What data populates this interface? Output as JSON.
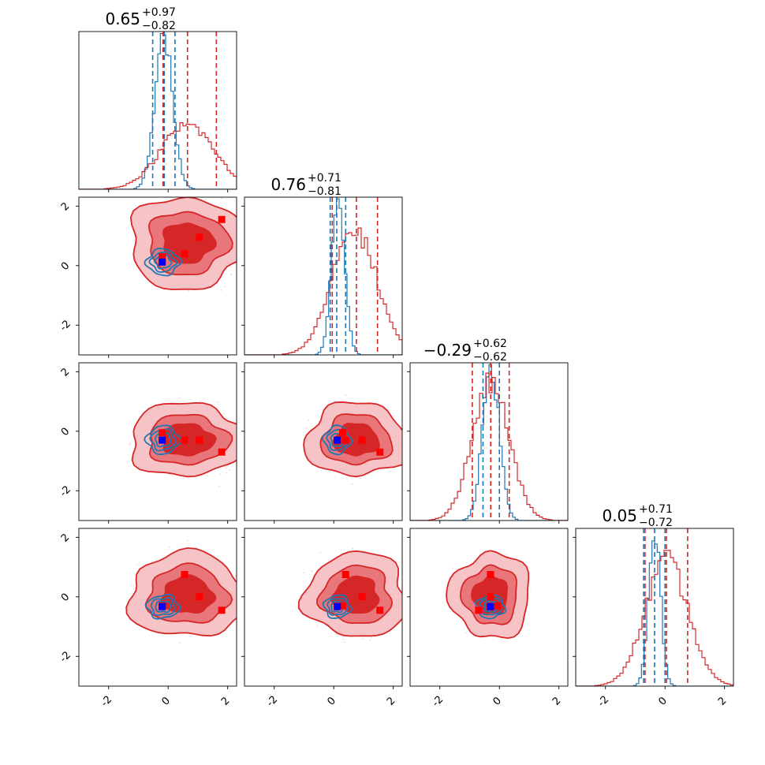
{
  "chart_data": {
    "type": "corner",
    "parameters": 4,
    "axis_range": [
      -3.0,
      2.3
    ],
    "ticks": [
      -2,
      0,
      2
    ],
    "tick_labels": [
      "-2",
      "0",
      "2"
    ],
    "colors": {
      "red": "#d62728",
      "red_mid": "#e8767a",
      "red_light": "#f6c4c6",
      "blue": "#1f77b4",
      "marker_red": "#ff0000",
      "marker_blue": "#0000ff"
    },
    "marginals": [
      {
        "title": {
          "value": "0.65",
          "plus": "+0.97",
          "minus": "−0.82"
        },
        "red_quantiles": [
          -0.17,
          0.65,
          1.62
        ],
        "blue_quantiles": [
          -0.52,
          -0.13,
          0.23
        ],
        "red_hist": {
          "mean": 0.65,
          "sd": 0.9,
          "peak": 0.42
        },
        "blue_hist": {
          "mean": -0.15,
          "sd": 0.3,
          "peak": 1.0
        }
      },
      {
        "title": {
          "value": "0.76",
          "plus": "+0.71",
          "minus": "−0.81"
        },
        "red_quantiles": [
          -0.05,
          0.76,
          1.47
        ],
        "blue_quantiles": [
          -0.12,
          0.1,
          0.4
        ],
        "red_hist": {
          "mean": 0.7,
          "sd": 0.75,
          "peak": 0.82
        },
        "blue_hist": {
          "mean": 0.15,
          "sd": 0.22,
          "peak": 1.0
        }
      },
      {
        "title": {
          "value": "−0.29",
          "plus": "+0.62",
          "minus": "−0.62"
        },
        "red_quantiles": [
          -0.91,
          -0.29,
          0.33
        ],
        "blue_quantiles": [
          -0.55,
          -0.29,
          0.0
        ],
        "red_hist": {
          "mean": -0.29,
          "sd": 0.62,
          "peak": 0.9
        },
        "blue_hist": {
          "mean": -0.28,
          "sd": 0.28,
          "peak": 1.0
        }
      },
      {
        "title": {
          "value": "0.05",
          "plus": "+0.71",
          "minus": "−0.72"
        },
        "red_quantiles": [
          -0.67,
          0.05,
          0.76
        ],
        "blue_quantiles": [
          -0.72,
          -0.35,
          0.0
        ],
        "red_hist": {
          "mean": 0.05,
          "sd": 0.72,
          "peak": 0.82
        },
        "blue_hist": {
          "mean": -0.35,
          "sd": 0.2,
          "peak": 1.0
        }
      }
    ],
    "contours": {
      "red_peak": [
        0.65,
        0.76,
        -0.29,
        0.05
      ],
      "red_spread": [
        0.9,
        0.78,
        0.62,
        0.72
      ],
      "blue_peak": [
        -0.17,
        0.12,
        -0.29,
        -0.33
      ],
      "blue_spread": [
        0.35,
        0.28,
        0.3,
        0.25
      ],
      "levels": [
        2.2,
        1.5,
        0.95
      ]
    },
    "points": {
      "red": [
        [
          0.55,
          0.4,
          -0.3,
          0.75
        ],
        [
          1.05,
          0.95,
          -0.3,
          0.0
        ],
        [
          1.8,
          1.55,
          -0.7,
          -0.45
        ],
        [
          -0.2,
          0.3,
          -0.05,
          -0.3
        ]
      ],
      "blue": [
        -0.2,
        0.12,
        -0.3,
        -0.33
      ]
    }
  }
}
